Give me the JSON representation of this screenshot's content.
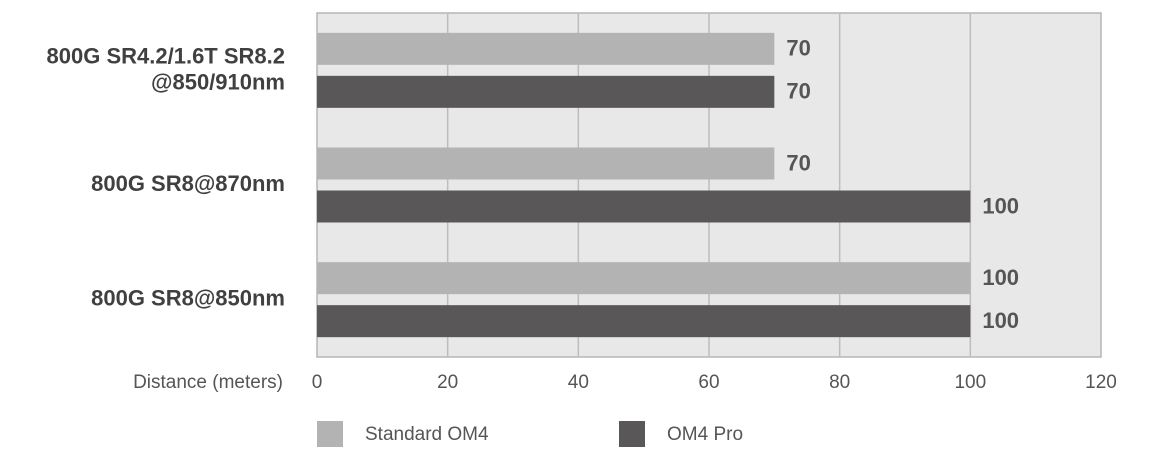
{
  "chart_data": {
    "type": "bar",
    "orientation": "horizontal",
    "x_label": "Distance (meters)",
    "categories": [
      "800G SR4.2/1.6T SR8.2\n@850/910nm",
      "800G SR8@870nm",
      "800G SR8@850nm"
    ],
    "series": [
      {
        "name": "Standard OM4",
        "color": "#b3b3b3",
        "values": [
          70,
          70,
          100
        ]
      },
      {
        "name": "OM4 Pro",
        "color": "#595757",
        "values": [
          70,
          100,
          100
        ]
      }
    ],
    "xlim": [
      0,
      120
    ],
    "xticks": [
      0,
      20,
      40,
      60,
      80,
      100,
      120
    ],
    "grid": true
  }
}
